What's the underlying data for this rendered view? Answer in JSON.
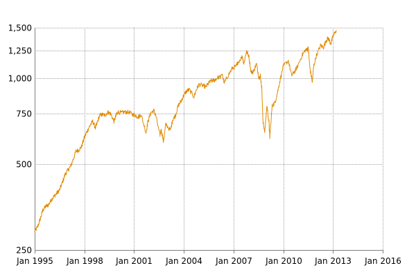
{
  "chart_data": {
    "type": "line",
    "title": "",
    "xlabel": "",
    "ylabel": "",
    "y_scale": "log",
    "grid": true,
    "legend": "none",
    "x_range": [
      "1995-01-01",
      "2016-01-01"
    ],
    "y_range": [
      250,
      1500
    ],
    "x_ticks": [
      {
        "date": "1995-01-01",
        "label": "Jan 1995"
      },
      {
        "date": "1998-01-01",
        "label": "Jan 1998"
      },
      {
        "date": "2001-01-01",
        "label": "Jan 2001"
      },
      {
        "date": "2004-01-01",
        "label": "Jan 2004"
      },
      {
        "date": "2007-01-01",
        "label": "Jan 2007"
      },
      {
        "date": "2010-01-01",
        "label": "Jan 2010"
      },
      {
        "date": "2013-01-01",
        "label": "Jan 2013"
      },
      {
        "date": "2016-01-01",
        "label": "Jan 2016"
      }
    ],
    "y_ticks": [
      {
        "value": 250,
        "label": "250"
      },
      {
        "value": 500,
        "label": "500"
      },
      {
        "value": 750,
        "label": "750"
      },
      {
        "value": 1000,
        "label": "1,000"
      },
      {
        "value": 1250,
        "label": "1,250"
      },
      {
        "value": 1500,
        "label": "1,500"
      }
    ],
    "series": [
      {
        "color": "#e08a00",
        "x": [
          "1995-01-01",
          "1995-03-01",
          "1995-05-01",
          "1995-07-01",
          "1995-09-01",
          "1995-11-01",
          "1996-01-01",
          "1996-03-01",
          "1996-05-01",
          "1996-07-01",
          "1996-09-01",
          "1996-11-01",
          "1997-01-01",
          "1997-03-01",
          "1997-05-01",
          "1997-07-01",
          "1997-09-01",
          "1997-11-01",
          "1998-01-01",
          "1998-03-01",
          "1998-05-01",
          "1998-07-01",
          "1998-08-31",
          "1998-10-01",
          "1998-12-01",
          "1999-02-01",
          "1999-04-01",
          "1999-06-01",
          "1999-08-01",
          "1999-10-15",
          "1999-12-01",
          "2000-01-01",
          "2000-03-24",
          "2000-06-01",
          "2000-09-01",
          "2000-12-01",
          "2001-02-01",
          "2001-04-01",
          "2001-06-01",
          "2001-09-21",
          "2001-11-01",
          "2002-01-01",
          "2002-03-15",
          "2002-05-01",
          "2002-07-23",
          "2002-08-20",
          "2002-10-09",
          "2002-12-01",
          "2003-03-11",
          "2003-05-01",
          "2003-07-01",
          "2003-09-01",
          "2003-11-01",
          "2004-01-01",
          "2004-03-01",
          "2004-05-01",
          "2004-08-12",
          "2004-10-01",
          "2004-12-01",
          "2005-03-01",
          "2005-05-01",
          "2005-07-01",
          "2005-09-01",
          "2005-11-01",
          "2006-01-01",
          "2006-05-01",
          "2006-06-13",
          "2006-09-01",
          "2006-12-01",
          "2007-02-27",
          "2007-04-01",
          "2007-07-15",
          "2007-08-16",
          "2007-10-09",
          "2007-12-01",
          "2008-01-22",
          "2008-03-10",
          "2008-05-19",
          "2008-07-15",
          "2008-08-15",
          "2008-09-15",
          "2008-10-10",
          "2008-11-20",
          "2009-01-06",
          "2009-02-20",
          "2009-03-09",
          "2009-05-01",
          "2009-07-01",
          "2009-09-01",
          "2009-11-01",
          "2010-01-01",
          "2010-04-23",
          "2010-07-02",
          "2010-09-01",
          "2010-11-01",
          "2011-02-18",
          "2011-04-29",
          "2011-06-15",
          "2011-07-07",
          "2011-08-08",
          "2011-10-03",
          "2011-11-01",
          "2012-01-01",
          "2012-04-02",
          "2012-06-04",
          "2012-08-01",
          "2012-09-14",
          "2012-11-15",
          "2013-01-01",
          "2013-03-15"
        ],
        "y": [
          290,
          300,
          320,
          345,
          355,
          360,
          375,
          385,
          395,
          405,
          430,
          460,
          475,
          490,
          520,
          555,
          560,
          575,
          620,
          650,
          680,
          705,
          670,
          690,
          740,
          745,
          740,
          760,
          750,
          705,
          740,
          760,
          755,
          760,
          760,
          745,
          740,
          730,
          745,
          645,
          705,
          755,
          770,
          730,
          630,
          660,
          600,
          690,
          655,
          715,
          740,
          800,
          830,
          870,
          900,
          910,
          860,
          910,
          950,
          940,
          930,
          960,
          980,
          980,
          1000,
          1020,
          960,
          1020,
          1080,
          1100,
          1130,
          1190,
          1120,
          1240,
          1200,
          1050,
          1050,
          1120,
          1000,
          1020,
          920,
          700,
          650,
          800,
          700,
          620,
          800,
          820,
          900,
          1000,
          1100,
          1150,
          1020,
          1050,
          1090,
          1200,
          1250,
          1260,
          1270,
          1090,
          970,
          1100,
          1200,
          1300,
          1280,
          1350,
          1380,
          1320,
          1400,
          1470
        ]
      }
    ]
  }
}
